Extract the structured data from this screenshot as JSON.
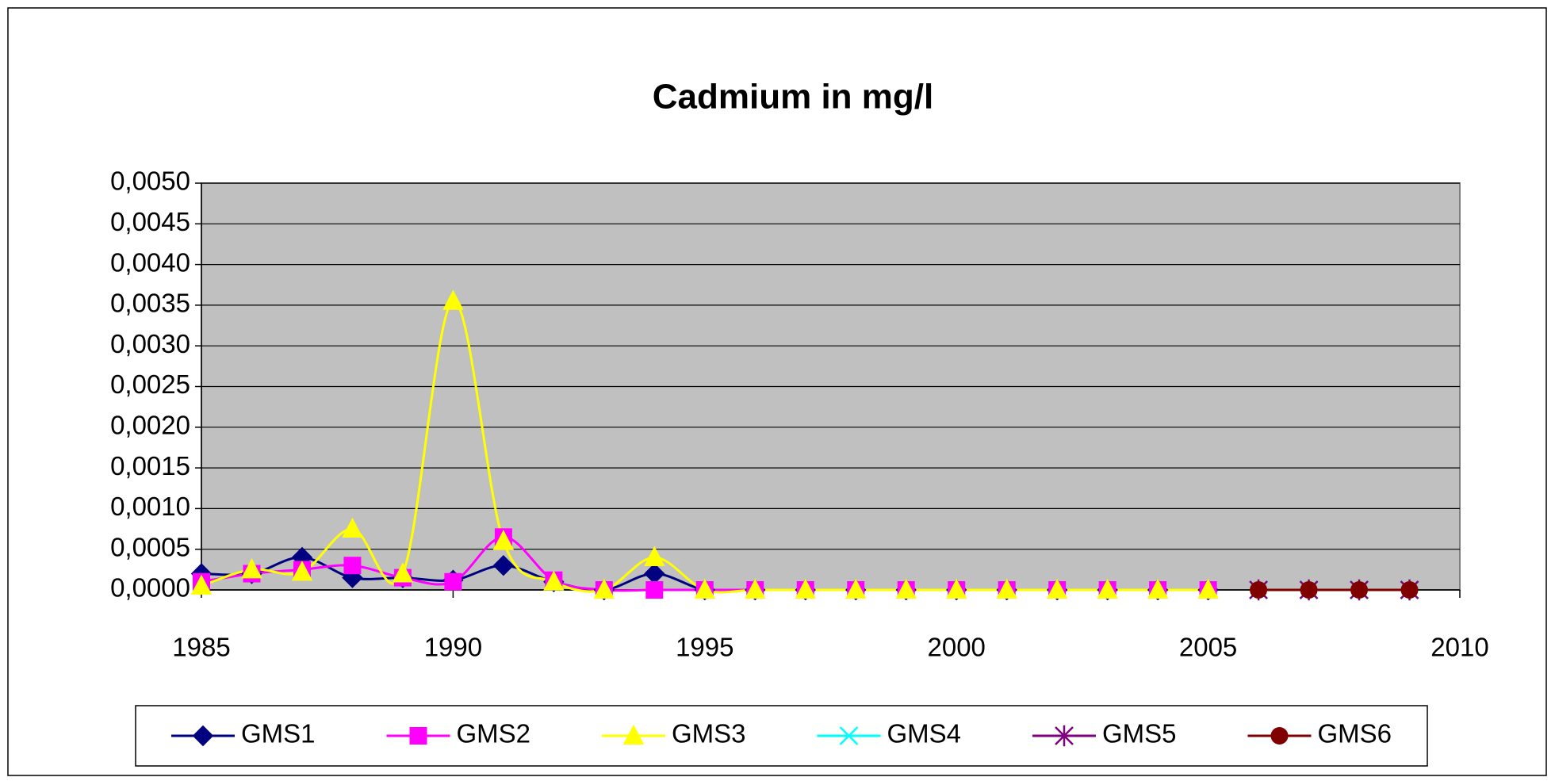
{
  "chart_data": {
    "type": "line",
    "title": "Cadmium in mg/l",
    "x": [
      1985,
      1986,
      1987,
      1988,
      1989,
      1990,
      1991,
      1992,
      1993,
      1994,
      1995,
      1996,
      1997,
      1998,
      1999,
      2000,
      2001,
      2002,
      2003,
      2004,
      2005,
      2006,
      2007,
      2008,
      2009
    ],
    "xlim": [
      1985,
      2010
    ],
    "xticks": [
      1985,
      1990,
      1995,
      2000,
      2005,
      2010
    ],
    "ylim": [
      0,
      0.005
    ],
    "yticks": [
      {
        "value": 0,
        "label": "0,0000"
      },
      {
        "value": 0.0005,
        "label": "0,0005"
      },
      {
        "value": 0.001,
        "label": "0,0010"
      },
      {
        "value": 0.0015,
        "label": "0,0015"
      },
      {
        "value": 0.002,
        "label": "0,0020"
      },
      {
        "value": 0.0025,
        "label": "0,0025"
      },
      {
        "value": 0.003,
        "label": "0,0030"
      },
      {
        "value": 0.0035,
        "label": "0,0035"
      },
      {
        "value": 0.004,
        "label": "0,0040"
      },
      {
        "value": 0.0045,
        "label": "0,0045"
      },
      {
        "value": 0.005,
        "label": "0,0050"
      }
    ],
    "grid": true,
    "smooth": true,
    "plot_background": "#c0c0c0",
    "legend": "bottom",
    "series": [
      {
        "name": "GMS1",
        "color": "#000080",
        "marker": "diamond",
        "values": [
          0.0002,
          0.0002,
          0.0004,
          0.00015,
          0.00015,
          0.00012,
          0.0003,
          0.0001,
          0,
          0.0002,
          0,
          0,
          0,
          0,
          0,
          0,
          0,
          0,
          0,
          0,
          0,
          null,
          null,
          null,
          null
        ]
      },
      {
        "name": "GMS2",
        "color": "#ff00ff",
        "marker": "square",
        "values": [
          0.0001,
          0.0002,
          0.00025,
          0.0003,
          0.00015,
          0.0001,
          0.00065,
          0.00012,
          0,
          0,
          0,
          0,
          0,
          0,
          0,
          0,
          0,
          0,
          0,
          0,
          0,
          null,
          null,
          null,
          null
        ]
      },
      {
        "name": "GMS3",
        "color": "#ffff00",
        "marker": "triangle",
        "values": [
          5e-05,
          0.00025,
          0.00022,
          0.00075,
          0.0002,
          0.00355,
          0.0006,
          0.0001,
          0,
          0.0004,
          0,
          0,
          0,
          0,
          0,
          0,
          0,
          0,
          0,
          0,
          0,
          null,
          null,
          null,
          null
        ]
      },
      {
        "name": "GMS4",
        "color": "#00ffff",
        "marker": "x",
        "values": [
          null,
          null,
          null,
          null,
          null,
          null,
          null,
          null,
          null,
          null,
          null,
          null,
          null,
          null,
          null,
          null,
          null,
          null,
          null,
          null,
          null,
          0,
          0,
          0,
          0
        ]
      },
      {
        "name": "GMS5",
        "color": "#800080",
        "marker": "star",
        "values": [
          null,
          null,
          null,
          null,
          null,
          null,
          null,
          null,
          null,
          null,
          null,
          null,
          null,
          null,
          null,
          null,
          null,
          null,
          null,
          null,
          null,
          0,
          0,
          0,
          0
        ]
      },
      {
        "name": "GMS6",
        "color": "#800000",
        "marker": "circle",
        "values": [
          null,
          null,
          null,
          null,
          null,
          null,
          null,
          null,
          null,
          null,
          null,
          null,
          null,
          null,
          null,
          null,
          null,
          null,
          null,
          null,
          null,
          0,
          0,
          0,
          0
        ]
      }
    ]
  }
}
